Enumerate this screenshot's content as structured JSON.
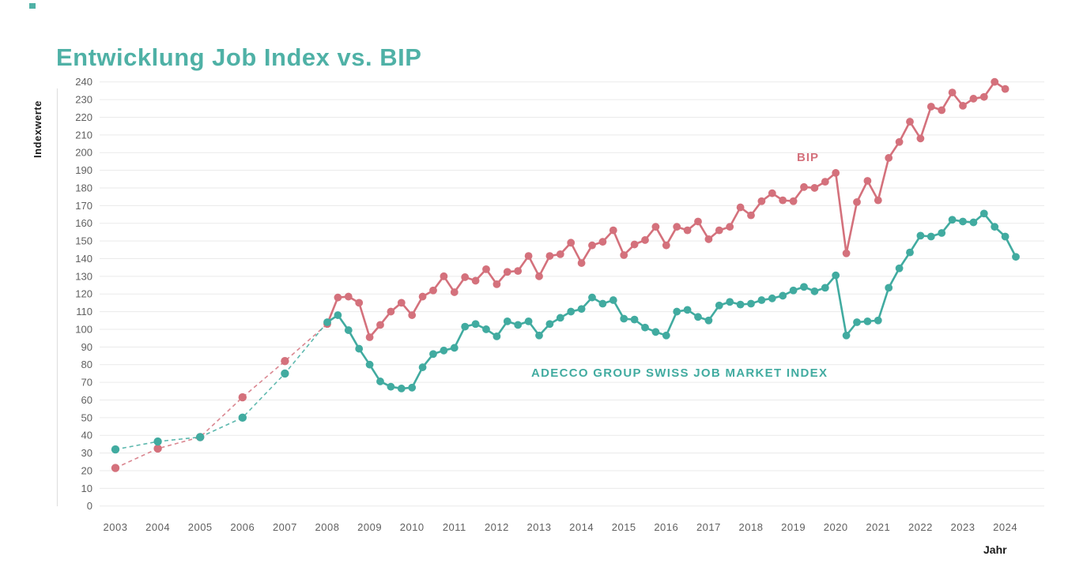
{
  "page_title": "Entwicklung Job Index vs. BIP",
  "chart_data": {
    "type": "line",
    "title": "Entwicklung Job Index vs. BIP",
    "xlabel": "Jahr",
    "ylabel": "Indexwerte",
    "ylim": [
      0,
      240
    ],
    "ytick_step": 10,
    "y_ticks": [
      0,
      10,
      20,
      30,
      40,
      50,
      60,
      70,
      80,
      90,
      100,
      110,
      120,
      130,
      140,
      150,
      160,
      170,
      180,
      190,
      200,
      210,
      220,
      230,
      240
    ],
    "x_ticks": [
      2003,
      2004,
      2005,
      2006,
      2007,
      2008,
      2009,
      2010,
      2011,
      2012,
      2013,
      2014,
      2015,
      2016,
      2017,
      2018,
      2019,
      2020,
      2021,
      2022,
      2023,
      2024
    ],
    "grid": true,
    "legend_position": "inline-labels",
    "style_note": "annual points 2003-2007 connected with thin dashed lines, quarterly points from 2008 connected with solid lines, round markers on every point",
    "annual_years": [
      2003,
      2004,
      2005,
      2006,
      2007
    ],
    "quarterly_start_year": 2008,
    "points_per_year": 4,
    "series": [
      {
        "name": "BIP",
        "color": "#d4717c",
        "annual_values": [
          21.5,
          32.5,
          39,
          61.5,
          82
        ],
        "quarterly_values": [
          103,
          118,
          118.5,
          115,
          95.5,
          102.5,
          110,
          115,
          108,
          118.5,
          122,
          130,
          121,
          129.5,
          127.5,
          134,
          125.5,
          132.5,
          133,
          141.5,
          130,
          141.5,
          142.5,
          149,
          137.5,
          147.5,
          149.5,
          156,
          142,
          148,
          150.5,
          158,
          147.5,
          158,
          156,
          161,
          151,
          156,
          158,
          169,
          164.5,
          172.5,
          177,
          173,
          172.5,
          180.5,
          180,
          183.5,
          188.5,
          143,
          172,
          184,
          173,
          197,
          206,
          217.5,
          208,
          226,
          224,
          234,
          226.5,
          230.5,
          231.5,
          240,
          236
        ]
      },
      {
        "name": "ADECCO GROUP SWISS JOB MARKET INDEX",
        "color": "#41aba0",
        "annual_values": [
          32,
          36.5,
          39,
          50,
          75
        ],
        "quarterly_values": [
          104,
          108,
          99.5,
          89,
          80,
          70.5,
          67.5,
          66.5,
          67,
          78.5,
          86,
          88,
          89.5,
          101.5,
          103,
          100,
          96,
          104.5,
          102.5,
          104.5,
          96.5,
          103,
          106.5,
          110,
          111.5,
          118,
          114.5,
          116.5,
          106,
          105.5,
          101,
          98.5,
          96.5,
          110,
          111,
          107,
          105,
          113.5,
          115.5,
          114,
          114.5,
          116.5,
          117.5,
          119,
          122,
          124,
          121.5,
          123.5,
          130.5,
          96.5,
          104,
          104.5,
          105,
          123.5,
          134.5,
          143.5,
          153,
          152.5,
          154.5,
          162,
          161,
          160.5,
          165.5,
          158,
          152.5,
          141
        ]
      }
    ]
  },
  "colors": {
    "accent_teal": "#41aba0",
    "accent_pink": "#d4717c",
    "title_teal": "#4fb1a6",
    "gridline": "#eaeaea",
    "tick_text": "#606060",
    "axis_title_text": "#1a1a1a"
  }
}
